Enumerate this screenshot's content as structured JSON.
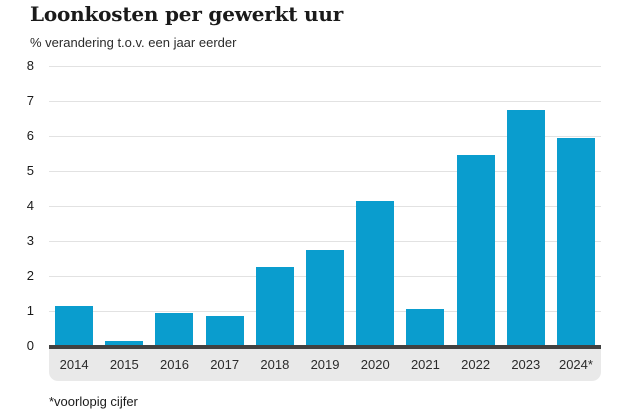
{
  "header": {
    "title": "Loonkosten per gewerkt uur",
    "subtitle": "% verandering t.o.v. een jaar eerder"
  },
  "footnote": "*voorlopig cijfer",
  "colors": {
    "bar": "#0a9dce",
    "gridline": "#e2e2e2",
    "axis_line": "#414141",
    "band_bg": "#e9e9e9",
    "title_text": "#1a1a1a",
    "label_text": "#2b2b2b"
  },
  "chart_data": {
    "type": "bar",
    "title": "Loonkosten per gewerkt uur",
    "subtitle": "% verandering t.o.v. een jaar eerder",
    "categories": [
      "2014",
      "2015",
      "2016",
      "2017",
      "2018",
      "2019",
      "2020",
      "2021",
      "2022",
      "2023",
      "2024*"
    ],
    "values": [
      1.2,
      0.2,
      1.0,
      0.9,
      2.3,
      2.8,
      4.2,
      1.1,
      5.5,
      6.8,
      6.0
    ],
    "xlabel": "",
    "ylabel": "% verandering t.o.v. een jaar eerder",
    "ylim": [
      0,
      8
    ],
    "ytick_step": 1,
    "grid": true,
    "legend": false,
    "note": "*voorlopig cijfer"
  }
}
